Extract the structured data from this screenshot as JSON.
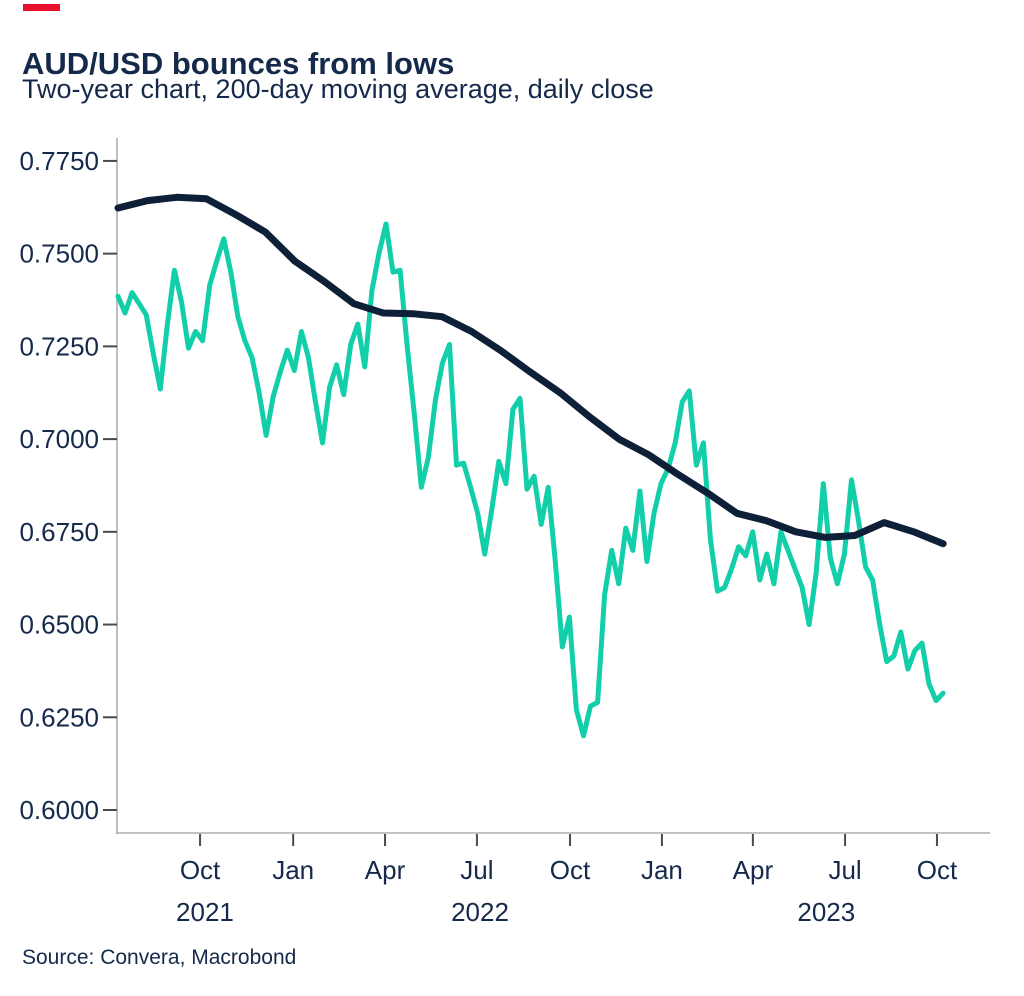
{
  "accent": {
    "color": "#E8112D"
  },
  "header": {
    "title": "AUD/USD bounces from lows",
    "subtitle": "Two-year chart, 200-day moving average, daily close"
  },
  "footer": {
    "source": "Source: Convera, Macrobond"
  },
  "text_color": "#15294B",
  "axis_color": "#ADADAD",
  "tick_color": "#4A4A4A",
  "chart_data": {
    "type": "line",
    "title": "AUD/USD bounces from lows",
    "subtitle": "Two-year chart, 200-day moving average, daily close",
    "source": "Source: Convera, Macrobond",
    "grid": false,
    "legend": "none",
    "x_unit": "months since mid-July 2021",
    "x_axis": {
      "domain_months": [
        0,
        28.4
      ],
      "ticks": [
        {
          "label": "Oct",
          "t": 2.67
        },
        {
          "label": "Jan",
          "t": 5.7
        },
        {
          "label": "Apr",
          "t": 8.69
        },
        {
          "label": "Jul",
          "t": 11.68
        },
        {
          "label": "Oct",
          "t": 14.71
        },
        {
          "label": "Jan",
          "t": 17.7
        },
        {
          "label": "Apr",
          "t": 20.66
        },
        {
          "label": "Jul",
          "t": 23.66
        },
        {
          "label": "Oct",
          "t": 26.65
        }
      ],
      "year_labels": [
        {
          "label": "2021",
          "t": 2.83
        },
        {
          "label": "2022",
          "t": 11.78
        },
        {
          "label": "2023",
          "t": 23.05
        }
      ]
    },
    "y_axis": {
      "domain": [
        0.5938,
        0.7812
      ],
      "ticks": [
        0.775,
        0.75,
        0.725,
        0.7,
        0.675,
        0.65,
        0.625,
        0.6
      ],
      "tick_format_decimals": 4
    },
    "series": [
      {
        "name": "AUD/USD daily close",
        "color": "#12CFAA",
        "stroke_width": 5,
        "t0": 0,
        "dt_months": 0.2295,
        "values": [
          0.7385,
          0.734,
          0.7395,
          0.7365,
          0.7335,
          0.723,
          0.7135,
          0.731,
          0.7455,
          0.737,
          0.7245,
          0.729,
          0.7265,
          0.7415,
          0.748,
          0.754,
          0.745,
          0.733,
          0.7265,
          0.722,
          0.7125,
          0.701,
          0.7115,
          0.718,
          0.724,
          0.7185,
          0.729,
          0.722,
          0.71,
          0.699,
          0.714,
          0.72,
          0.712,
          0.7255,
          0.731,
          0.7195,
          0.74,
          0.75,
          0.758,
          0.745,
          0.7455,
          0.725,
          0.707,
          0.687,
          0.695,
          0.7105,
          0.7205,
          0.7255,
          0.693,
          0.6935,
          0.687,
          0.68,
          0.669,
          0.681,
          0.694,
          0.688,
          0.708,
          0.711,
          0.6865,
          0.69,
          0.677,
          0.687,
          0.667,
          0.644,
          0.652,
          0.627,
          0.62,
          0.628,
          0.629,
          0.658,
          0.67,
          0.661,
          0.676,
          0.67,
          0.686,
          0.667,
          0.68,
          0.688,
          0.692,
          0.699,
          0.71,
          0.713,
          0.693,
          0.699,
          0.673,
          0.659,
          0.66,
          0.665,
          0.671,
          0.6685,
          0.675,
          0.662,
          0.669,
          0.661,
          0.675,
          0.67,
          0.665,
          0.66,
          0.65,
          0.664,
          0.688,
          0.668,
          0.661,
          0.669,
          0.689,
          0.678,
          0.6655,
          0.662,
          0.65,
          0.64,
          0.6415,
          0.648,
          0.638,
          0.643,
          0.645,
          0.634,
          0.6295,
          0.6315
        ]
      },
      {
        "name": "200-day moving average",
        "color": "#0E2038",
        "stroke_width": 7,
        "t0": 0,
        "dt_months": 0.959,
        "values": [
          0.7623,
          0.7643,
          0.7652,
          0.7648,
          0.7605,
          0.7558,
          0.748,
          0.7425,
          0.7365,
          0.734,
          0.7338,
          0.733,
          0.729,
          0.7238,
          0.718,
          0.7125,
          0.706,
          0.7,
          0.6958,
          0.6905,
          0.6855,
          0.68,
          0.678,
          0.675,
          0.6735,
          0.674,
          0.6775,
          0.675,
          0.6718
        ]
      }
    ]
  }
}
